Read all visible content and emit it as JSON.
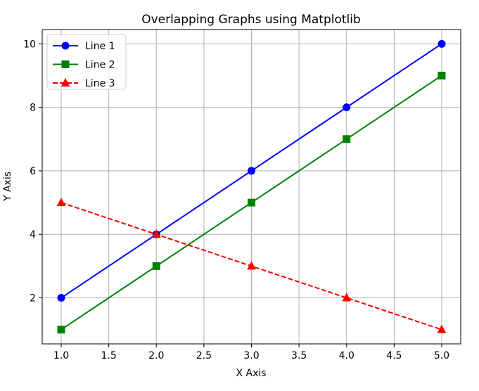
{
  "chart_data": {
    "type": "line",
    "title": "Overlapping Graphs using Matplotlib",
    "xlabel": "X Axis",
    "ylabel": "Y Axis",
    "x": [
      1,
      2,
      3,
      4,
      5
    ],
    "xlim": [
      0.8,
      5.2
    ],
    "ylim": [
      0.55,
      10.45
    ],
    "xticks": [
      1.0,
      1.5,
      2.0,
      2.5,
      3.0,
      3.5,
      4.0,
      4.5,
      5.0
    ],
    "xtick_labels": [
      "1.0",
      "1.5",
      "2.0",
      "2.5",
      "3.0",
      "3.5",
      "4.0",
      "4.5",
      "5.0"
    ],
    "yticks": [
      2,
      4,
      6,
      8,
      10
    ],
    "ytick_labels": [
      "2",
      "4",
      "6",
      "8",
      "10"
    ],
    "grid": true,
    "legend_position": "upper-left",
    "series": [
      {
        "name": "Line 1",
        "values": [
          2,
          4,
          6,
          8,
          10
        ],
        "color": "#0000ff",
        "marker": "circle",
        "linestyle": "solid"
      },
      {
        "name": "Line 2",
        "values": [
          1,
          3,
          5,
          7,
          9
        ],
        "color": "#008000",
        "marker": "square",
        "linestyle": "solid"
      },
      {
        "name": "Line 3",
        "values": [
          5,
          4,
          3,
          2,
          1
        ],
        "color": "#ff0000",
        "marker": "triangle",
        "linestyle": "dashed"
      }
    ]
  }
}
